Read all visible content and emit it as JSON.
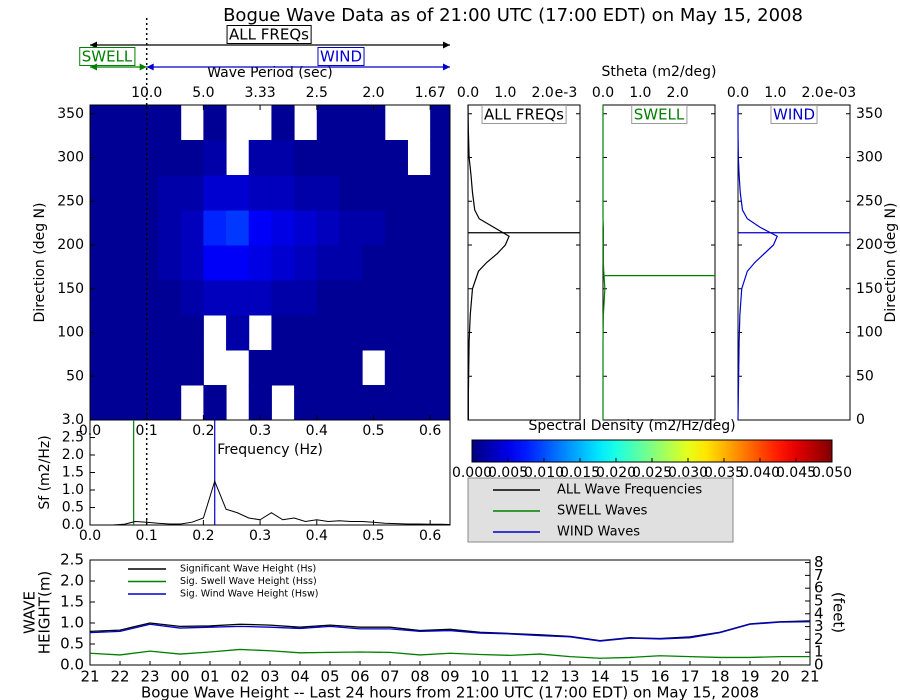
{
  "title": "Bogue Wave Data as of 21:00 UTC (17:00 EDT) on May 15, 2008",
  "chart_data": [
    {
      "type": "heatmap",
      "xlabel": "Frequency (Hz)",
      "ylabel": "Direction (deg N)",
      "xlim": [
        0,
        0.635
      ],
      "ylim": [
        0,
        360
      ],
      "xticks": [
        {
          "value": 0,
          "label": "0.0"
        },
        {
          "value": 0.1,
          "label": "0.1"
        },
        {
          "value": 0.2,
          "label": "0.2"
        },
        {
          "value": 0.3,
          "label": "0.3"
        },
        {
          "value": 0.4,
          "label": "0.4"
        },
        {
          "value": 0.5,
          "label": "0.5"
        },
        {
          "value": 0.6,
          "label": "0.6"
        }
      ],
      "yticks": [
        50,
        100,
        150,
        200,
        250,
        300,
        350
      ],
      "top_axis": {
        "label": "Wave Period (sec)",
        "ticks": [
          {
            "value": 0.1,
            "label": "10.0"
          },
          {
            "value": 0.2,
            "label": "5.0"
          },
          {
            "value": 0.3,
            "label": "3.33"
          },
          {
            "value": 0.4,
            "label": "2.5"
          },
          {
            "value": 0.5,
            "label": "2.0"
          },
          {
            "value": 0.6,
            "label": "1.67"
          }
        ]
      },
      "cutoff": 0.1,
      "annotations": [
        {
          "text": "ALL FREQs",
          "color": "#000000"
        },
        {
          "text": "SWELL",
          "color": "#008000"
        },
        {
          "text": "WIND",
          "color": "#0000cc"
        }
      ],
      "x_edges": [
        0,
        0.04,
        0.08,
        0.12,
        0.16,
        0.2,
        0.24,
        0.28,
        0.32,
        0.36,
        0.4,
        0.44,
        0.48,
        0.52,
        0.56,
        0.6,
        0.64
      ],
      "y_edges": [
        0,
        40,
        80,
        120,
        160,
        200,
        240,
        280,
        320,
        360
      ],
      "z": [
        [
          0.001,
          0.001,
          0.001,
          0.001,
          null,
          0.001,
          null,
          0.001,
          null,
          0.001,
          0.001,
          0.001,
          0.001,
          0.001,
          0.001,
          0.001
        ],
        [
          0.001,
          0.001,
          0.001,
          0.001,
          0.001,
          null,
          null,
          0.001,
          0.001,
          0.001,
          0.001,
          0.001,
          null,
          0.001,
          0.001,
          0.001
        ],
        [
          0.001,
          0.001,
          0.001,
          0.001,
          0.001,
          null,
          0.002,
          null,
          0.001,
          0.001,
          0.001,
          0.001,
          0.001,
          0.001,
          0.001,
          0.001
        ],
        [
          0.001,
          0.001,
          0.001,
          0.001,
          0.002,
          0.003,
          0.003,
          0.003,
          0.002,
          0.002,
          0.001,
          0.001,
          0.001,
          0.001,
          0.001,
          0.001
        ],
        [
          0.001,
          0.001,
          0.001,
          0.002,
          0.003,
          0.006,
          0.006,
          0.005,
          0.004,
          0.003,
          0.002,
          0.002,
          0.001,
          0.001,
          0.001,
          0.001
        ],
        [
          0.001,
          0.001,
          0.001,
          0.002,
          0.003,
          0.008,
          0.009,
          0.006,
          0.005,
          0.004,
          0.003,
          0.002,
          0.002,
          0.001,
          0.001,
          0.001
        ],
        [
          0.001,
          0.001,
          0.001,
          0.002,
          0.002,
          0.004,
          0.004,
          0.003,
          0.003,
          0.002,
          0.002,
          0.001,
          0.001,
          0.001,
          0.001,
          0.001
        ],
        [
          0.001,
          0.001,
          0.001,
          0.001,
          0.001,
          0.002,
          null,
          0.002,
          0.002,
          0.001,
          0.001,
          0.001,
          0.001,
          0.001,
          null,
          0.001
        ],
        [
          0.001,
          0.001,
          0.001,
          0.001,
          null,
          0.001,
          null,
          null,
          0.001,
          null,
          0.001,
          0.001,
          0.001,
          null,
          null,
          0.001
        ]
      ],
      "colorbar": {
        "label": "Spectral Density (m2/Hz/deg)",
        "lim": [
          0,
          0.05
        ],
        "ticks": [
          {
            "value": 0,
            "label": "0.000"
          },
          {
            "value": 0.005,
            "label": "0.005"
          },
          {
            "value": 0.01,
            "label": "0.010"
          },
          {
            "value": 0.015,
            "label": "0.015"
          },
          {
            "value": 0.02,
            "label": "0.020"
          },
          {
            "value": 0.025,
            "label": "0.025"
          },
          {
            "value": 0.03,
            "label": "0.030"
          },
          {
            "value": 0.035,
            "label": "0.035"
          },
          {
            "value": 0.04,
            "label": "0.040"
          },
          {
            "value": 0.045,
            "label": "0.045"
          },
          {
            "value": 0.05,
            "label": "0.050"
          }
        ]
      }
    },
    {
      "type": "direction_profiles",
      "xlabel": "Stheta (m2/deg)",
      "ylabel": "Direction (deg N)",
      "xlim": [
        0,
        0.003
      ],
      "ylim": [
        0,
        360
      ],
      "xticks": [
        {
          "value": 0,
          "label": "0.0"
        },
        {
          "value": 0.001,
          "label": "1.0"
        },
        {
          "value": 0.002,
          "label": "2.0"
        }
      ],
      "yticks": [
        0,
        50,
        100,
        150,
        200,
        250,
        300,
        350
      ],
      "directions": [
        0,
        30,
        60,
        90,
        120,
        150,
        170,
        180,
        190,
        200,
        210,
        220,
        230,
        240,
        260,
        280,
        300,
        330,
        360
      ],
      "series": [
        {
          "name": "ALL Wave Frequencies",
          "title": "ALL FREQs",
          "color": "#000000",
          "offset_label": "e-3",
          "mean_direction": 214,
          "values": [
            1e-05,
            1e-05,
            2e-05,
            3e-05,
            6e-05,
            0.00012,
            0.00028,
            0.0005,
            0.00078,
            0.001,
            0.0011,
            0.0007,
            0.0003,
            0.00018,
            0.00012,
            8e-05,
            3e-05,
            1e-05,
            0
          ]
        },
        {
          "name": "SWELL Waves",
          "title": "SWELL",
          "color": "#008000",
          "mean_direction": 165,
          "values": [
            0,
            0,
            0,
            0,
            1e-05,
            5e-05,
            2e-05,
            1e-05,
            1e-05,
            1e-05,
            1e-05,
            1e-05,
            0,
            0,
            0,
            0,
            0,
            0,
            0
          ]
        },
        {
          "name": "WIND Waves",
          "title": "WIND",
          "color": "#0000cc",
          "offset_label": "e-03",
          "mean_direction": 214,
          "values": [
            0,
            1e-05,
            2e-05,
            3e-05,
            5e-05,
            0.0001,
            0.00025,
            0.00045,
            0.0007,
            0.00095,
            0.00105,
            0.0006,
            0.00025,
            0.00012,
            6e-05,
            3e-05,
            1e-05,
            0,
            0
          ]
        }
      ]
    },
    {
      "type": "line",
      "ylabel": "Sf (m2/Hz)",
      "color": "#000000",
      "xlim": [
        0,
        0.635
      ],
      "ylim": [
        0,
        3
      ],
      "xticks": [
        {
          "value": 0,
          "label": "0.0"
        },
        {
          "value": 0.1,
          "label": "0.1"
        },
        {
          "value": 0.2,
          "label": "0.2"
        },
        {
          "value": 0.3,
          "label": "0.3"
        },
        {
          "value": 0.4,
          "label": "0.4"
        },
        {
          "value": 0.5,
          "label": "0.5"
        },
        {
          "value": 0.6,
          "label": "0.6"
        }
      ],
      "yticks": [
        {
          "value": 0,
          "label": "0.0"
        },
        {
          "value": 0.5,
          "label": "0.5"
        },
        {
          "value": 1,
          "label": "1.0"
        },
        {
          "value": 1.5,
          "label": "1.5"
        },
        {
          "value": 2,
          "label": "2.0"
        },
        {
          "value": 2.5,
          "label": "2.5"
        },
        {
          "value": 3,
          "label": "3.0"
        }
      ],
      "x": [
        0.04,
        0.06,
        0.08,
        0.1,
        0.12,
        0.14,
        0.16,
        0.18,
        0.2,
        0.22,
        0.24,
        0.26,
        0.28,
        0.3,
        0.32,
        0.34,
        0.36,
        0.38,
        0.4,
        0.42,
        0.44,
        0.46,
        0.48,
        0.5,
        0.52,
        0.54,
        0.56,
        0.58,
        0.6,
        0.62,
        0.64
      ],
      "values": [
        0,
        0.02,
        0.1,
        0.08,
        0.05,
        0.03,
        0.03,
        0.08,
        0.2,
        1.25,
        0.45,
        0.35,
        0.2,
        0.15,
        0.35,
        0.15,
        0.2,
        0.1,
        0.15,
        0.1,
        0.12,
        0.1,
        0.1,
        0.08,
        0.05,
        0.04,
        0.03,
        0.03,
        0.02,
        0.02,
        0.01
      ],
      "swell_peak": {
        "value": 0.077,
        "color": "#008000"
      },
      "wind_peak": {
        "value": 0.22,
        "color": "#0000cc"
      }
    },
    {
      "type": "line",
      "xlabel": "Bogue Wave Height -- Last 24 hours from 21:00 UTC (17:00 EDT) on May 15, 2008",
      "ylabel": [
        "WAVE",
        "HEIGHT(m)"
      ],
      "y2label": "(feet)",
      "categories": [
        "21",
        "22",
        "23",
        "00",
        "01",
        "02",
        "03",
        "04",
        "05",
        "06",
        "07",
        "08",
        "09",
        "10",
        "11",
        "12",
        "13",
        "14",
        "15",
        "16",
        "17",
        "18",
        "19",
        "20",
        "21"
      ],
      "ylim": [
        0,
        2.5
      ],
      "yticks": [
        {
          "value": 0,
          "label": "0.0"
        },
        {
          "value": 0.5,
          "label": "0.5"
        },
        {
          "value": 1,
          "label": "1.0"
        },
        {
          "value": 1.5,
          "label": "1.5"
        },
        {
          "value": 2,
          "label": "2.0"
        },
        {
          "value": 2.5,
          "label": "2.5"
        }
      ],
      "y2lim": [
        0,
        8.2
      ],
      "y2ticks": [
        0,
        1,
        2,
        3,
        4,
        5,
        6,
        7,
        8
      ],
      "series": [
        {
          "name": "Significant Wave Height (Hs)",
          "color": "#000000",
          "values": [
            0.8,
            0.83,
            1.0,
            0.92,
            0.93,
            0.97,
            0.95,
            0.9,
            0.95,
            0.9,
            0.9,
            0.82,
            0.85,
            0.78,
            0.75,
            0.72,
            0.68,
            0.58,
            0.65,
            0.63,
            0.67,
            0.78,
            0.98,
            1.03,
            1.05
          ]
        },
        {
          "name": "Sig. Swell Wave Height (Hss)",
          "color": "#008000",
          "values": [
            0.28,
            0.24,
            0.33,
            0.26,
            0.31,
            0.37,
            0.34,
            0.29,
            0.3,
            0.31,
            0.3,
            0.24,
            0.28,
            0.25,
            0.23,
            0.26,
            0.2,
            0.16,
            0.18,
            0.22,
            0.2,
            0.18,
            0.18,
            0.2,
            0.2
          ]
        },
        {
          "name": "Sig. Wind Wave Height (Hsw)",
          "color": "#0000cc",
          "values": [
            0.77,
            0.8,
            0.97,
            0.88,
            0.9,
            0.92,
            0.9,
            0.87,
            0.92,
            0.86,
            0.86,
            0.8,
            0.82,
            0.76,
            0.74,
            0.7,
            0.67,
            0.57,
            0.64,
            0.62,
            0.65,
            0.77,
            0.97,
            1.02,
            1.03
          ]
        }
      ]
    }
  ]
}
